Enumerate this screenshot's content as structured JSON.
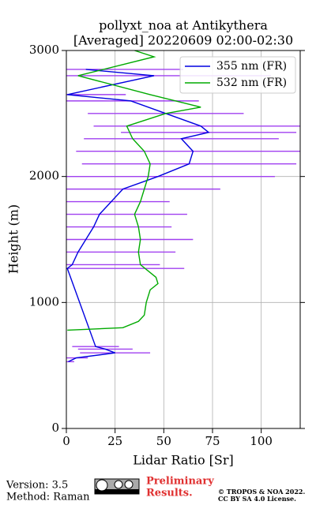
{
  "chart_data": {
    "type": "line",
    "title": "pollyxt_noa at Antikythera",
    "subtitle": "[Averaged] 20220609 02:00-02:30",
    "xlabel": "Lidar Ratio [Sr]",
    "ylabel": "Height (m)",
    "xlim": [
      0,
      120
    ],
    "xticks": [
      0,
      25,
      50,
      75,
      100
    ],
    "ylim": [
      0,
      3000
    ],
    "yticks": [
      0,
      1000,
      2000,
      3000
    ],
    "grid": true,
    "legend": "upper right",
    "error_color": "#a040f0",
    "series": [
      {
        "name": "355 nm (FR)",
        "color": "#0000e0",
        "y": [
          530,
          560,
          600,
          630,
          650,
          1270,
          1300,
          1400,
          1500,
          1600,
          1700,
          1800,
          1900,
          2000,
          2100,
          2200,
          2300,
          2350,
          2400,
          2500,
          2600,
          2650,
          2800,
          2850
        ],
        "values": [
          1,
          5,
          25,
          20,
          15,
          0.5,
          3,
          6,
          10,
          14,
          17,
          23,
          29,
          47,
          63,
          65,
          59,
          73,
          69,
          51,
          33,
          0.5,
          45,
          10
        ],
        "errors": [
          3,
          6,
          18,
          14,
          12,
          60,
          45,
          50,
          55,
          40,
          45,
          30,
          50,
          60,
          55,
          60,
          50,
          45,
          55,
          40,
          35,
          30,
          60,
          50
        ]
      },
      {
        "name": "532 nm (FR)",
        "color": "#00aa00",
        "y": [
          780,
          800,
          850,
          900,
          1000,
          1100,
          1150,
          1200,
          1300,
          1400,
          1500,
          1600,
          1700,
          1800,
          1900,
          2000,
          2100,
          2200,
          2300,
          2400,
          2500,
          2550,
          2650,
          2800,
          2950,
          3000
        ],
        "values": [
          0.5,
          29,
          37,
          40,
          41,
          43,
          47,
          46,
          38,
          37,
          38,
          37,
          35,
          38,
          40,
          42,
          43,
          40,
          34,
          31,
          51,
          69,
          43,
          6,
          45,
          35
        ]
      }
    ],
    "annotations": [
      {
        "text": "Version: 3.5",
        "color": "#000000"
      },
      {
        "text": "Method: Raman",
        "color": "#000000"
      },
      {
        "text": "Preliminary",
        "color": "#e03030"
      },
      {
        "text": "Results.",
        "color": "#e03030"
      },
      {
        "text": "© TROPOS & NOA 2022.",
        "color": "#000000"
      },
      {
        "text": "CC BY SA 4.0 License.",
        "color": "#000000"
      }
    ]
  }
}
